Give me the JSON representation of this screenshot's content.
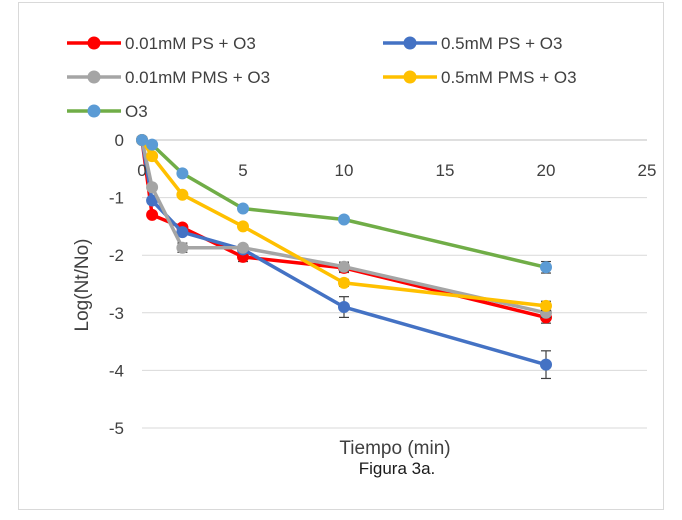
{
  "chart_data": {
    "type": "line",
    "title": "",
    "xlabel": "Tiempo (min)",
    "ylabel": "Log(Nt/No)",
    "caption": "Figura 3a.",
    "xlim": [
      0,
      25
    ],
    "ylim": [
      -5,
      0
    ],
    "x_ticks": [
      "0",
      "5",
      "10",
      "15",
      "20",
      "25"
    ],
    "y_ticks": [
      "0",
      "-1",
      "-2",
      "-3",
      "-4",
      "-5"
    ],
    "grid": "horizontal",
    "legend_position": "top",
    "series": [
      {
        "name": "0.01mM   PS + O3",
        "color": "#ff0000",
        "x": [
          0,
          0.5,
          2,
          5,
          10,
          20
        ],
        "y": [
          0,
          -1.3,
          -1.52,
          -2.03,
          -2.22,
          -3.08
        ],
        "err": [
          0,
          0,
          0,
          0.08,
          0.08,
          0.1
        ]
      },
      {
        "name": "0.5mM   PS + O3",
        "color": "#4472c4",
        "x": [
          0,
          0.5,
          2,
          5,
          10,
          20
        ],
        "y": [
          0,
          -1.05,
          -1.6,
          -1.9,
          -2.9,
          -3.9
        ],
        "err": [
          0,
          0,
          0,
          0,
          0.18,
          0.24
        ]
      },
      {
        "name": "0.01mM   PMS + O3",
        "color": "#a5a5a5",
        "x": [
          0,
          0.5,
          2,
          5,
          10,
          20
        ],
        "y": [
          0,
          -0.82,
          -1.87,
          -1.87,
          -2.2,
          -3.0
        ],
        "err": [
          0,
          0,
          0.08,
          0.05,
          0.08,
          0.08
        ]
      },
      {
        "name": "0.5mM   PMS + O3",
        "color": "#ffc000",
        "x": [
          0,
          0.5,
          2,
          5,
          10,
          20
        ],
        "y": [
          0,
          -0.28,
          -0.95,
          -1.5,
          -2.48,
          -2.88
        ],
        "err": [
          0,
          0,
          0,
          0,
          0.06,
          0.08
        ]
      },
      {
        "name": "O3",
        "color": "#70ad47",
        "marker_color": "#5b9bd5",
        "x": [
          0,
          0.5,
          2,
          5,
          10,
          20
        ],
        "y": [
          0,
          -0.08,
          -0.58,
          -1.19,
          -1.38,
          -2.21
        ],
        "err": [
          0,
          0,
          0,
          0,
          0.03,
          0.1
        ]
      }
    ]
  }
}
